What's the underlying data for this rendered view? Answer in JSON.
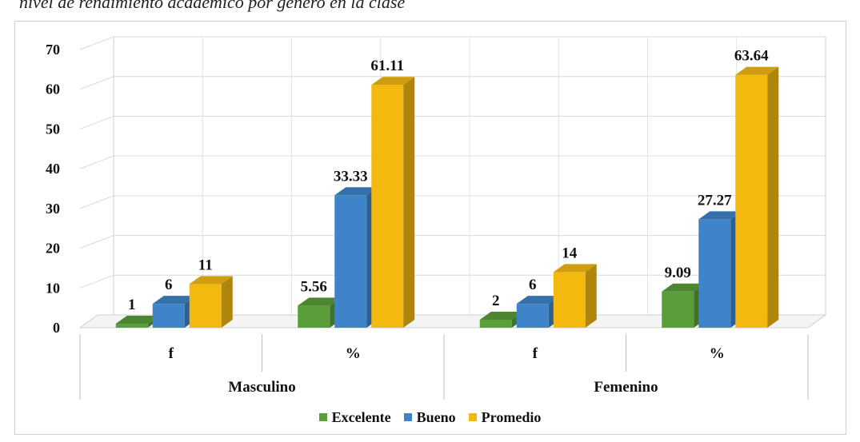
{
  "caption": "nivel de rendimiento académico por género en la clase",
  "chart_data": {
    "type": "bar",
    "groups": [
      {
        "name": "Masculino",
        "subcategories": [
          "f",
          "%"
        ]
      },
      {
        "name": "Femenino",
        "subcategories": [
          "f",
          "%"
        ]
      }
    ],
    "categories": [
      "f",
      "%",
      "f",
      "%"
    ],
    "series": [
      {
        "name": "Excelente",
        "color": "#5a9e3a",
        "values": [
          1,
          5.56,
          2,
          9.09
        ],
        "labels": [
          "1",
          "5.56",
          "2",
          "9.09"
        ]
      },
      {
        "name": "Bueno",
        "color": "#3f84c9",
        "values": [
          6,
          33.33,
          6,
          27.27
        ],
        "labels": [
          "6",
          "33.33",
          "6",
          "27.27"
        ]
      },
      {
        "name": "Promedio",
        "color": "#f3b90f",
        "values": [
          11,
          61.11,
          14,
          63.64
        ],
        "labels": [
          "11",
          "61.11",
          "14",
          "63.64"
        ]
      }
    ],
    "ylim": [
      0,
      70
    ],
    "yticks": [
      "0",
      "10",
      "20",
      "30",
      "40",
      "50",
      "60",
      "70"
    ],
    "grid": true,
    "legend_position": "bottom",
    "style": "3d-column"
  }
}
